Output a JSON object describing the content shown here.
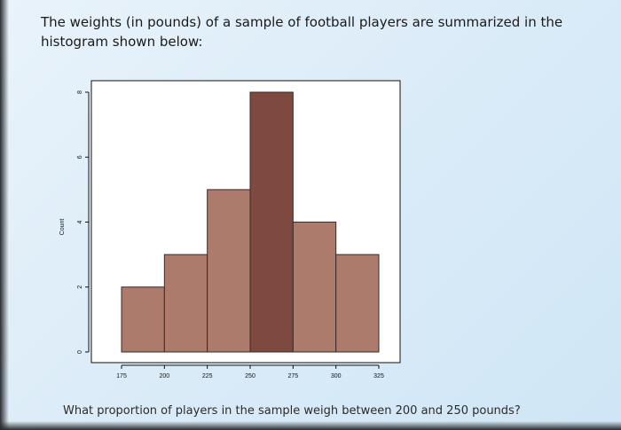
{
  "question": {
    "intro_line1": "The weights (in pounds) of a sample of football players are summarized in the",
    "intro_line2": "histogram shown below:",
    "prompt": "What proportion of players in the sample weigh between 200 and 250 pounds?"
  },
  "colors": {
    "bar_fill": "#ad7b6c",
    "bar_tall_fill": "#7e4a40",
    "bar_stroke": "#3a2a26",
    "plot_bg": "#ffffff",
    "text": "#1a1a1a"
  },
  "chart_data": {
    "type": "bar",
    "title": "",
    "xlabel": "",
    "ylabel": "Count",
    "bin_edges": [
      175,
      200,
      225,
      250,
      275,
      300,
      325
    ],
    "values": [
      2,
      3,
      5,
      8,
      4,
      3
    ],
    "xticks": [
      175,
      200,
      225,
      250,
      275,
      300,
      325
    ],
    "yticks": [
      0,
      2,
      4,
      6,
      8
    ],
    "xlim": [
      175,
      325
    ],
    "ylim": [
      0,
      8
    ],
    "grid": false,
    "legend": "none"
  }
}
